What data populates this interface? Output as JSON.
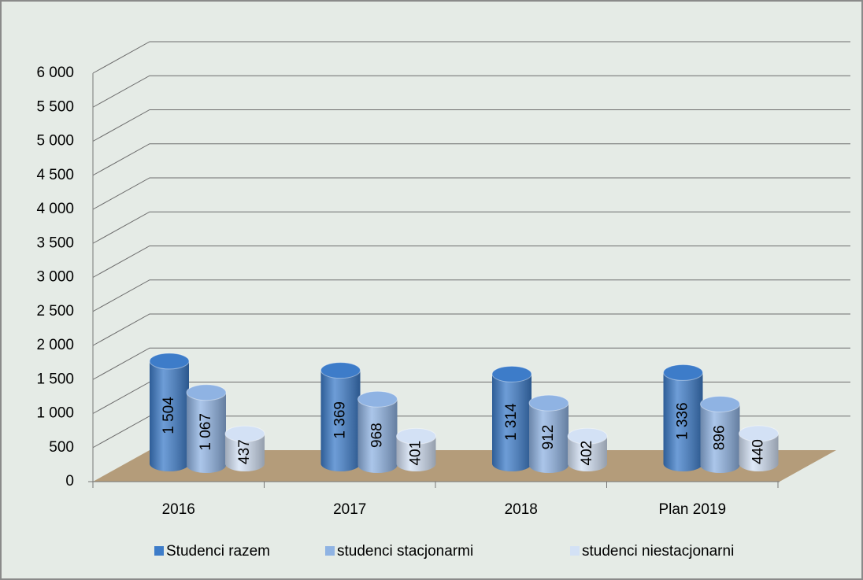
{
  "chart_data": {
    "type": "bar",
    "categories": [
      "2016",
      "2017",
      "2018",
      "Plan 2019"
    ],
    "series": [
      {
        "name": "Studenci razem",
        "color": "#3d7cc9",
        "values": [
          1504,
          1369,
          1314,
          1336
        ],
        "value_labels": [
          "1 504",
          "1 369",
          "1 314",
          "1 336"
        ]
      },
      {
        "name": "studenci stacjonarmi",
        "color": "#8fb3e3",
        "values": [
          1067,
          968,
          912,
          896
        ],
        "value_labels": [
          "1 067",
          "968",
          "912",
          "896"
        ]
      },
      {
        "name": "studenci niestacjonarni",
        "color": "#d3e1f5",
        "values": [
          437,
          401,
          402,
          440
        ],
        "value_labels": [
          "437",
          "401",
          "402",
          "440"
        ]
      }
    ],
    "ylim": [
      0,
      6000
    ],
    "yticks": [
      0,
      500,
      {
        "value": 1000,
        "label": "1 000"
      },
      {
        "value": 1500,
        "label": "1 500"
      },
      {
        "value": 2000,
        "label": "2 000"
      },
      {
        "value": 2500,
        "label": "2 500"
      },
      {
        "value": 3000,
        "label": "3 000"
      },
      {
        "value": 3500,
        "label": "3 500"
      },
      {
        "value": 4000,
        "label": "4 000"
      },
      {
        "value": 4500,
        "label": "4 500"
      },
      {
        "value": 5000,
        "label": "5 000"
      },
      {
        "value": 5500,
        "label": "5 500"
      },
      {
        "value": 6000,
        "label": "6 000"
      }
    ],
    "grid": true,
    "legend": "bottom"
  }
}
